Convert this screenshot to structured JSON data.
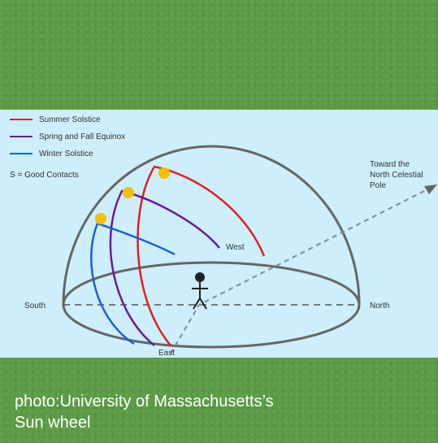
{
  "diagram": {
    "legend": [
      "Summer Solstice",
      "Spring and Fall Equinox",
      "Winter Solstice"
    ],
    "note": "S = Good Contacts",
    "pole_label": [
      "Toward the",
      "North Celestial",
      "Pole"
    ],
    "south": "South",
    "north": "North",
    "east": "East",
    "west": "West"
  },
  "caption": [
    "photo:University of Massachusetts’s",
    "Sun wheel"
  ]
}
